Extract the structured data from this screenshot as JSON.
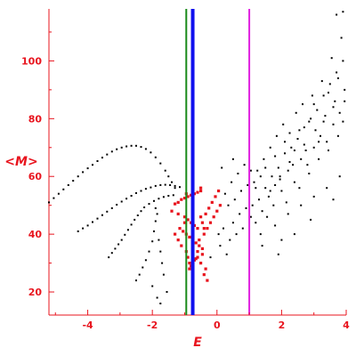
{
  "chart_data": {
    "type": "scatter",
    "xlabel": "E",
    "ylabel": "<M>",
    "xlim": [
      -5.2,
      4.0
    ],
    "ylim": [
      12,
      118
    ],
    "grid": false,
    "x_ticks": [
      -4,
      -2,
      0,
      2,
      4
    ],
    "x_tick_labels": [
      "-4",
      "-2",
      "0",
      "2",
      "4"
    ],
    "y_ticks": [
      20,
      40,
      60,
      80,
      100
    ],
    "y_tick_labels": [
      "20",
      "40",
      "60",
      "80",
      "100"
    ],
    "vertical_lines": [
      {
        "x": -0.95,
        "color": "#1a8a1a"
      },
      {
        "x": -0.75,
        "color": "#1010ee"
      },
      {
        "x": 1.0,
        "color": "#e020e0"
      }
    ],
    "series": [
      {
        "color": "#000000",
        "points": [
          [
            -5.2,
            51
          ],
          [
            -5.05,
            52.5
          ],
          [
            -4.9,
            54
          ],
          [
            -4.75,
            55.5
          ],
          [
            -4.6,
            57
          ],
          [
            -4.45,
            58.5
          ],
          [
            -4.3,
            60
          ],
          [
            -4.15,
            61.5
          ],
          [
            -4.0,
            62.8
          ],
          [
            -3.85,
            64
          ],
          [
            -3.7,
            65.3
          ],
          [
            -3.55,
            66.5
          ],
          [
            -3.4,
            67.6
          ],
          [
            -3.25,
            68.6
          ],
          [
            -3.1,
            69.4
          ],
          [
            -2.95,
            70
          ],
          [
            -2.8,
            70.4
          ],
          [
            -2.65,
            70.6
          ],
          [
            -2.5,
            70.6
          ],
          [
            -2.35,
            70.2
          ],
          [
            -2.2,
            69.5
          ],
          [
            -2.05,
            68.3
          ],
          [
            -1.9,
            66.6
          ],
          [
            -1.75,
            64.5
          ],
          [
            -1.6,
            62
          ],
          [
            -1.5,
            60
          ],
          [
            -1.4,
            58
          ],
          [
            -1.3,
            56
          ],
          [
            -4.3,
            41
          ],
          [
            -4.15,
            42
          ],
          [
            -4.0,
            43
          ],
          [
            -3.85,
            44.2
          ],
          [
            -3.7,
            45.4
          ],
          [
            -3.55,
            46.6
          ],
          [
            -3.4,
            47.8
          ],
          [
            -3.25,
            49
          ],
          [
            -3.1,
            50.2
          ],
          [
            -2.95,
            51.3
          ],
          [
            -2.8,
            52.3
          ],
          [
            -2.65,
            53.3
          ],
          [
            -2.5,
            54.2
          ],
          [
            -2.35,
            55
          ],
          [
            -2.2,
            55.7
          ],
          [
            -2.05,
            56.2
          ],
          [
            -1.9,
            56.7
          ],
          [
            -1.75,
            57
          ],
          [
            -1.6,
            57.1
          ],
          [
            -1.45,
            57
          ],
          [
            -1.3,
            56.7
          ],
          [
            -1.15,
            56.3
          ],
          [
            -3.35,
            32
          ],
          [
            -3.25,
            33.5
          ],
          [
            -3.15,
            35
          ],
          [
            -3.05,
            36.5
          ],
          [
            -2.95,
            38
          ],
          [
            -2.85,
            39.8
          ],
          [
            -2.75,
            41.5
          ],
          [
            -2.65,
            43.3
          ],
          [
            -2.55,
            45
          ],
          [
            -2.45,
            46.5
          ],
          [
            -2.35,
            48
          ],
          [
            -2.25,
            49.3
          ],
          [
            -2.1,
            50.5
          ],
          [
            -1.95,
            51.5
          ],
          [
            -1.8,
            52.3
          ],
          [
            -1.65,
            52.9
          ],
          [
            -1.5,
            53.3
          ],
          [
            -1.35,
            53.5
          ],
          [
            -2.5,
            24
          ],
          [
            -2.4,
            26
          ],
          [
            -2.3,
            28.5
          ],
          [
            -2.2,
            31
          ],
          [
            -2.1,
            34
          ],
          [
            -2.0,
            37.5
          ],
          [
            -1.95,
            41
          ],
          [
            -1.9,
            44.5
          ],
          [
            -1.85,
            47
          ],
          [
            -1.9,
            49
          ],
          [
            -1.8,
            38
          ],
          [
            -1.75,
            34
          ],
          [
            -1.7,
            30
          ],
          [
            -1.65,
            26
          ],
          [
            -2.0,
            22
          ],
          [
            -1.85,
            18
          ],
          [
            -1.75,
            16
          ],
          [
            -1.55,
            20
          ],
          [
            -0.2,
            32
          ],
          [
            0.1,
            36
          ],
          [
            0.3,
            33
          ],
          [
            0.05,
            40
          ],
          [
            0.2,
            42
          ],
          [
            0.4,
            38
          ],
          [
            0.5,
            44
          ],
          [
            -0.1,
            46
          ],
          [
            0.6,
            40
          ],
          [
            0.7,
            47
          ],
          [
            0.35,
            50
          ],
          [
            0.8,
            42
          ],
          [
            0.9,
            49
          ],
          [
            0.55,
            52
          ],
          [
            1.05,
            46
          ],
          [
            0.25,
            54
          ],
          [
            0.75,
            55
          ],
          [
            0.45,
            58
          ],
          [
            0.95,
            57
          ],
          [
            0.65,
            61
          ],
          [
            0.15,
            63
          ],
          [
            0.85,
            64
          ],
          [
            0.5,
            66
          ],
          [
            1.1,
            50
          ],
          [
            1.2,
            44
          ],
          [
            1.3,
            52
          ],
          [
            1.4,
            48
          ],
          [
            1.5,
            56
          ],
          [
            1.6,
            53
          ],
          [
            1.7,
            60
          ],
          [
            1.8,
            57
          ],
          [
            1.9,
            63
          ],
          [
            2.0,
            55
          ],
          [
            2.1,
            68
          ],
          [
            2.2,
            62
          ],
          [
            2.3,
            70
          ],
          [
            2.4,
            58
          ],
          [
            2.5,
            73
          ],
          [
            2.6,
            66
          ],
          [
            2.7,
            77
          ],
          [
            2.8,
            64
          ],
          [
            2.9,
            80
          ],
          [
            3.0,
            70
          ],
          [
            3.1,
            83
          ],
          [
            3.2,
            74
          ],
          [
            3.3,
            88
          ],
          [
            3.4,
            72
          ],
          [
            3.5,
            92
          ],
          [
            3.6,
            78
          ],
          [
            3.7,
            96
          ],
          [
            3.8,
            82
          ],
          [
            3.9,
            100
          ],
          [
            3.95,
            86
          ],
          [
            1.15,
            58
          ],
          [
            1.25,
            62
          ],
          [
            1.35,
            40
          ],
          [
            1.45,
            66
          ],
          [
            1.55,
            46
          ],
          [
            1.65,
            70
          ],
          [
            1.75,
            50
          ],
          [
            1.85,
            74
          ],
          [
            1.95,
            60
          ],
          [
            2.05,
            78
          ],
          [
            2.15,
            51
          ],
          [
            2.25,
            75
          ],
          [
            2.35,
            64
          ],
          [
            2.45,
            82
          ],
          [
            2.55,
            56
          ],
          [
            2.65,
            85
          ],
          [
            2.75,
            69
          ],
          [
            2.85,
            61
          ],
          [
            2.95,
            88
          ],
          [
            3.05,
            76
          ],
          [
            3.15,
            66
          ],
          [
            3.25,
            93
          ],
          [
            3.35,
            81
          ],
          [
            3.45,
            69
          ],
          [
            3.55,
            101
          ],
          [
            3.65,
            86
          ],
          [
            3.75,
            74
          ],
          [
            3.85,
            108
          ],
          [
            3.95,
            90
          ],
          [
            3.7,
            116
          ],
          [
            3.9,
            117
          ],
          [
            1.05,
            62
          ],
          [
            1.2,
            56
          ],
          [
            1.35,
            60
          ],
          [
            1.5,
            63
          ],
          [
            1.65,
            55
          ],
          [
            1.8,
            67
          ],
          [
            1.95,
            59
          ],
          [
            2.1,
            72
          ],
          [
            2.25,
            65
          ],
          [
            2.4,
            69
          ],
          [
            2.55,
            76
          ],
          [
            2.7,
            71
          ],
          [
            2.85,
            79
          ],
          [
            3.0,
            85
          ],
          [
            3.15,
            72
          ],
          [
            3.3,
            79
          ],
          [
            3.45,
            89
          ],
          [
            3.6,
            84
          ],
          [
            3.75,
            94
          ],
          [
            3.9,
            79
          ],
          [
            1.8,
            43
          ],
          [
            2.2,
            47
          ],
          [
            2.6,
            50
          ],
          [
            3.0,
            53
          ],
          [
            3.4,
            56
          ],
          [
            3.8,
            60
          ],
          [
            2.0,
            38
          ],
          [
            2.9,
            45
          ],
          [
            3.6,
            52
          ],
          [
            1.4,
            36
          ],
          [
            1.9,
            33
          ],
          [
            2.4,
            40
          ]
        ]
      },
      {
        "color": "#e8141e",
        "points": [
          [
            -1.2,
            51
          ],
          [
            -1.1,
            52
          ],
          [
            -1.0,
            52.5
          ],
          [
            -0.9,
            53
          ],
          [
            -0.8,
            53.5
          ],
          [
            -0.7,
            54
          ],
          [
            -0.6,
            54.5
          ],
          [
            -0.5,
            55
          ],
          [
            -1.3,
            50.5
          ],
          [
            -0.95,
            54
          ],
          [
            -0.85,
            28
          ],
          [
            -0.8,
            29
          ],
          [
            -0.75,
            30
          ],
          [
            -0.7,
            31
          ],
          [
            -0.65,
            31.5
          ],
          [
            -0.6,
            32
          ],
          [
            -1.4,
            48
          ],
          [
            -1.2,
            47
          ],
          [
            -1.0,
            46
          ],
          [
            -0.9,
            45
          ],
          [
            -0.8,
            44
          ],
          [
            -0.7,
            43
          ],
          [
            -0.6,
            42
          ],
          [
            -1.05,
            41
          ],
          [
            -0.95,
            40
          ],
          [
            -0.85,
            39
          ],
          [
            -0.75,
            38
          ],
          [
            -0.65,
            37
          ],
          [
            -0.55,
            36
          ],
          [
            -0.45,
            35
          ],
          [
            -0.4,
            40
          ],
          [
            -0.3,
            42
          ],
          [
            -0.2,
            44
          ],
          [
            -0.1,
            46
          ],
          [
            0.0,
            48
          ],
          [
            0.1,
            50
          ],
          [
            -0.35,
            47
          ],
          [
            -0.25,
            49
          ],
          [
            -0.15,
            51
          ],
          [
            -0.05,
            53
          ],
          [
            0.05,
            55
          ],
          [
            -0.5,
            56
          ],
          [
            -0.5,
            46
          ],
          [
            -0.45,
            44
          ],
          [
            -0.4,
            42
          ],
          [
            -0.55,
            38
          ],
          [
            -0.6,
            34
          ],
          [
            -0.5,
            30
          ],
          [
            -0.4,
            26
          ],
          [
            -0.3,
            24
          ],
          [
            -0.35,
            28
          ],
          [
            -0.45,
            33
          ],
          [
            -1.3,
            40
          ],
          [
            -1.2,
            38
          ],
          [
            -1.1,
            36
          ],
          [
            -0.95,
            34
          ],
          [
            -0.9,
            32
          ],
          [
            -0.85,
            30
          ],
          [
            -1.0,
            44
          ],
          [
            -1.15,
            42
          ]
        ]
      }
    ]
  }
}
